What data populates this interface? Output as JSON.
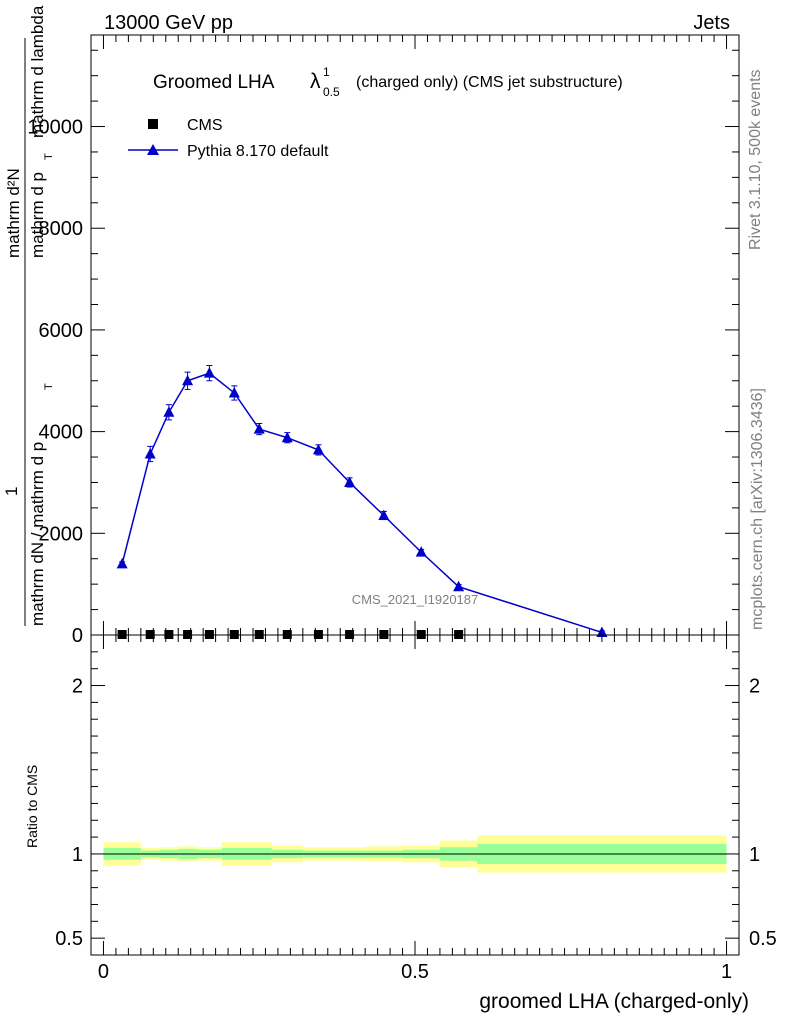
{
  "header": {
    "energy_label": "13000 GeV pp",
    "process_label": "Jets"
  },
  "side_labels": {
    "rivet": "Rivet 3.1.10,  500k events",
    "mcplots": "mcplots.cern.ch [arXiv:1306.3436]"
  },
  "chart_data": [
    {
      "type": "line",
      "title": "Groomed LHA",
      "title_symbol": "λ",
      "title_sup": "1",
      "title_sub": "0.5",
      "title_suffix": "(charged only) (CMS jet substructure)",
      "watermark": "CMS_2021_I1920187",
      "ylabel_numerator_1": "mathrm d²N",
      "ylabel_numerator_2": "mathrm d p",
      "ylabel_numerator_3": "mathrm d lambda",
      "ylabel_fraction_one": "1",
      "ylabel_denominator": "mathrm dN / mathrm d p",
      "ylabel_denominator_sub": "T",
      "ylabel_numerator_sub": "T",
      "xlim": [
        -0.02,
        1.02
      ],
      "ylim": [
        0,
        11800
      ],
      "yticks": [
        0,
        2000,
        4000,
        6000,
        8000,
        10000
      ],
      "ytick_labels": [
        "0",
        "2000",
        "4000",
        "6000",
        "8000",
        "10000"
      ],
      "legend": [
        {
          "name": "CMS",
          "marker": "square",
          "color": "#000000"
        },
        {
          "name": "Pythia 8.170 default",
          "marker": "triangle",
          "color": "#0000cc"
        }
      ],
      "series": [
        {
          "name": "CMS",
          "x": [
            0.03,
            0.075,
            0.105,
            0.135,
            0.17,
            0.21,
            0.25,
            0.295,
            0.345,
            0.395,
            0.45,
            0.51,
            0.57
          ],
          "y": [
            0,
            0,
            0,
            0,
            0,
            0,
            0,
            0,
            0,
            0,
            0,
            0,
            0
          ]
        },
        {
          "name": "Pythia 8.170 default",
          "x": [
            0.03,
            0.075,
            0.105,
            0.135,
            0.17,
            0.21,
            0.25,
            0.295,
            0.345,
            0.395,
            0.45,
            0.51,
            0.57,
            0.8
          ],
          "y": [
            1400,
            3560,
            4380,
            5000,
            5150,
            4760,
            4050,
            3880,
            3640,
            3000,
            2350,
            1630,
            950,
            50
          ],
          "err": [
            40,
            150,
            150,
            170,
            150,
            140,
            110,
            100,
            100,
            90,
            80,
            50,
            40,
            30
          ]
        }
      ]
    },
    {
      "type": "area",
      "ylabel": "Ratio to CMS",
      "xlabel": "groomed LHA (charged-only)",
      "xlim": [
        -0.02,
        1.02
      ],
      "ylim": [
        0.4,
        2.3
      ],
      "xticks": [
        0,
        0.5,
        1
      ],
      "xtick_labels": [
        "0",
        "0.5",
        "1"
      ],
      "yticks": [
        0.5,
        1,
        2
      ],
      "ytick_labels": [
        "0.5",
        "1",
        "2"
      ],
      "bins": [
        {
          "lo": 0.0,
          "hi": 0.06,
          "green": [
            0.965,
            1.035
          ],
          "yellow": [
            0.93,
            1.07
          ]
        },
        {
          "lo": 0.06,
          "hi": 0.09,
          "green": [
            0.98,
            1.02
          ],
          "yellow": [
            0.965,
            1.035
          ]
        },
        {
          "lo": 0.09,
          "hi": 0.12,
          "green": [
            0.975,
            1.025
          ],
          "yellow": [
            0.96,
            1.04
          ]
        },
        {
          "lo": 0.12,
          "hi": 0.15,
          "green": [
            0.97,
            1.03
          ],
          "yellow": [
            0.955,
            1.045
          ]
        },
        {
          "lo": 0.15,
          "hi": 0.19,
          "green": [
            0.975,
            1.025
          ],
          "yellow": [
            0.96,
            1.04
          ]
        },
        {
          "lo": 0.19,
          "hi": 0.27,
          "green": [
            0.965,
            1.035
          ],
          "yellow": [
            0.93,
            1.07
          ]
        },
        {
          "lo": 0.27,
          "hi": 0.32,
          "green": [
            0.975,
            1.025
          ],
          "yellow": [
            0.95,
            1.05
          ]
        },
        {
          "lo": 0.32,
          "hi": 0.42,
          "green": [
            0.98,
            1.02
          ],
          "yellow": [
            0.96,
            1.04
          ]
        },
        {
          "lo": 0.42,
          "hi": 0.48,
          "green": [
            0.98,
            1.02
          ],
          "yellow": [
            0.955,
            1.045
          ]
        },
        {
          "lo": 0.48,
          "hi": 0.54,
          "green": [
            0.975,
            1.025
          ],
          "yellow": [
            0.95,
            1.05
          ]
        },
        {
          "lo": 0.54,
          "hi": 0.6,
          "green": [
            0.96,
            1.04
          ],
          "yellow": [
            0.92,
            1.08
          ]
        },
        {
          "lo": 0.6,
          "hi": 1.0,
          "green": [
            0.94,
            1.06
          ],
          "yellow": [
            0.89,
            1.11
          ]
        }
      ],
      "colors": {
        "green": "#99ff99",
        "yellow": "#ffff99",
        "mc": "#0000cc"
      }
    }
  ]
}
